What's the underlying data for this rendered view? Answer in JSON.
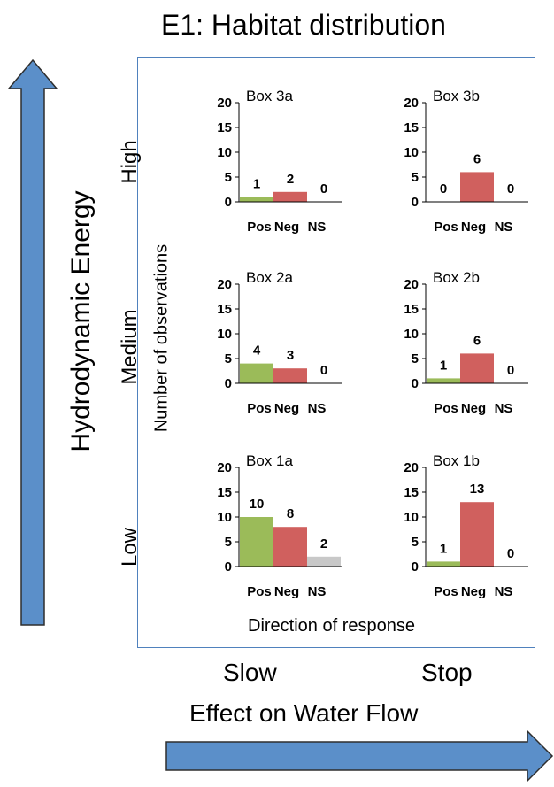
{
  "title": "E1: Habitat distribution",
  "vertical_axis_label": "Hydrodynamic Energy",
  "levels": {
    "high": "High",
    "medium": "Medium",
    "low": "Low"
  },
  "flow": {
    "slow": "Slow",
    "stop": "Stop",
    "label": "Effect on Water Flow"
  },
  "colors": {
    "pos": "#9bbb59",
    "neg": "#d0605e",
    "ns": "#c8c8c8",
    "arrow": "#5b8fc9",
    "frame": "#4f81bd"
  },
  "chart_data": {
    "type": "bar",
    "ylabel": "Number of observations",
    "xlabel": "Direction of response",
    "categories": [
      "Pos",
      "Neg",
      "NS"
    ],
    "yticks": [
      0,
      5,
      10,
      15,
      20
    ],
    "ylim": [
      0,
      20
    ],
    "panels": [
      {
        "title": "Box 3a",
        "values": [
          1,
          2,
          0
        ]
      },
      {
        "title": "Box 3b",
        "values": [
          0,
          6,
          0
        ]
      },
      {
        "title": "Box 2a",
        "values": [
          4,
          3,
          0
        ]
      },
      {
        "title": "Box 2b",
        "values": [
          1,
          6,
          0
        ]
      },
      {
        "title": "Box 1a",
        "values": [
          10,
          8,
          2
        ]
      },
      {
        "title": "Box 1b",
        "values": [
          1,
          13,
          0
        ]
      }
    ]
  }
}
